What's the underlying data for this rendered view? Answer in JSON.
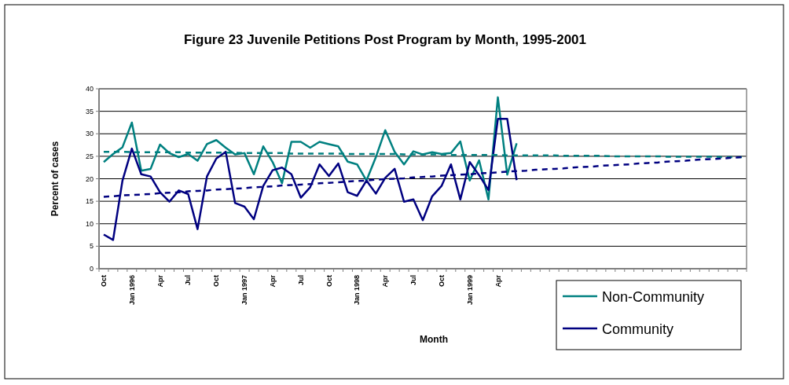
{
  "chart_data": {
    "type": "line",
    "title": "Figure 23 Juvenile Petitions Post Program by Month, 1995-2001",
    "xlabel": "Month",
    "ylabel": "Percent of cases",
    "categories": [
      "Oct",
      null,
      null,
      "Jan 1996",
      null,
      null,
      "Apr",
      null,
      null,
      "Jul",
      null,
      null,
      "Oct",
      null,
      null,
      "Jan 1997",
      null,
      null,
      "Apr",
      null,
      null,
      "Jul",
      null,
      null,
      "Oct",
      null,
      null,
      "Jan 1998",
      null,
      null,
      "Apr",
      null,
      null,
      "Jul",
      null,
      null,
      "Oct",
      null,
      null,
      "Jan 1999",
      null,
      null,
      "Apr",
      null,
      null,
      null,
      null,
      null,
      null,
      null,
      null,
      null,
      null,
      null,
      null,
      null,
      null,
      null,
      null,
      null,
      null,
      null,
      null,
      null,
      null,
      null,
      null,
      null,
      null
    ],
    "ylim": [
      0,
      40
    ],
    "yticks": [
      0,
      5,
      10,
      15,
      20,
      25,
      30,
      35,
      40
    ],
    "grid": "y",
    "legend": "bottom right",
    "marker": "none",
    "series": [
      {
        "name": "Non-Community",
        "color": "#008080",
        "line_style": "solid",
        "values": [
          23.7,
          25.5,
          27.0,
          32.5,
          21.8,
          22.2,
          27.6,
          25.7,
          24.8,
          25.5,
          24.0,
          27.7,
          28.6,
          26.9,
          25.4,
          25.7,
          21.0,
          27.2,
          23.7,
          19.0,
          28.2,
          28.2,
          26.9,
          28.2,
          27.7,
          27.2,
          23.8,
          23.2,
          19.6,
          24.8,
          30.8,
          26.0,
          23.2,
          26.1,
          25.4,
          25.9,
          25.5,
          25.7,
          28.3,
          19.6,
          24.1,
          15.4,
          38.1,
          20.9,
          27.9,
          null,
          null,
          null,
          null,
          null,
          null,
          null,
          null,
          null,
          null,
          null,
          null,
          null,
          null,
          null,
          null,
          null,
          null,
          null,
          null,
          null,
          null,
          null,
          null
        ]
      },
      {
        "name": "Community",
        "color": "#000080",
        "line_style": "solid",
        "values": [
          7.6,
          6.4,
          19.6,
          26.7,
          21.0,
          20.5,
          17.0,
          14.9,
          17.4,
          16.6,
          8.8,
          20.5,
          24.5,
          26.0,
          14.6,
          13.8,
          11.0,
          18.4,
          21.9,
          22.5,
          21.0,
          15.8,
          18.1,
          23.2,
          20.6,
          23.4,
          17.0,
          16.2,
          19.6,
          16.7,
          20.2,
          22.2,
          14.9,
          15.4,
          10.8,
          16.1,
          18.4,
          23.2,
          15.4,
          23.7,
          20.8,
          17.5,
          33.3,
          33.3,
          19.7,
          null,
          null,
          null,
          null,
          null,
          null,
          null,
          null,
          null,
          null,
          null,
          null,
          null,
          null,
          null,
          null,
          null,
          null,
          null,
          null,
          null,
          null,
          null,
          null
        ]
      },
      {
        "color": "#008080",
        "line_style": "dashed",
        "values": [
          26.0,
          26.0,
          26.0,
          25.9,
          25.9,
          25.9,
          25.9,
          25.9,
          25.9,
          25.8,
          25.8,
          25.8,
          25.8,
          25.8,
          25.8,
          25.7,
          25.7,
          25.7,
          25.7,
          25.7,
          25.6,
          25.6,
          25.6,
          25.6,
          25.6,
          25.6,
          25.5,
          25.5,
          25.5,
          25.5,
          25.5,
          25.5,
          25.4,
          25.4,
          25.4,
          25.4,
          25.4,
          25.3,
          25.3,
          25.3,
          25.3,
          25.3,
          25.3,
          25.2,
          25.2,
          25.2,
          25.2,
          25.2,
          25.2,
          25.1,
          25.1,
          25.1,
          25.1,
          25.1,
          25.0,
          25.0,
          25.0,
          25.0,
          25.0,
          25.0,
          24.9,
          24.9,
          24.9,
          24.9,
          24.9,
          24.9,
          24.8,
          24.8,
          24.8
        ]
      },
      {
        "color": "#000080",
        "line_style": "dashed",
        "values": [
          16.0,
          16.1,
          16.3,
          16.4,
          16.5,
          16.6,
          16.8,
          16.9,
          17.0,
          17.2,
          17.3,
          17.4,
          17.6,
          17.7,
          17.8,
          17.9,
          18.1,
          18.2,
          18.3,
          18.5,
          18.6,
          18.7,
          18.8,
          19.0,
          19.1,
          19.2,
          19.4,
          19.5,
          19.6,
          19.8,
          19.9,
          20.0,
          20.1,
          20.3,
          20.4,
          20.5,
          20.7,
          20.8,
          20.9,
          21.0,
          21.2,
          21.3,
          21.4,
          21.6,
          21.7,
          21.8,
          22.0,
          22.1,
          22.2,
          22.3,
          22.5,
          22.6,
          22.7,
          22.9,
          23.0,
          23.1,
          23.2,
          23.4,
          23.5,
          23.6,
          23.8,
          23.9,
          24.0,
          24.2,
          24.3,
          24.4,
          24.5,
          24.7,
          24.8
        ]
      }
    ]
  }
}
